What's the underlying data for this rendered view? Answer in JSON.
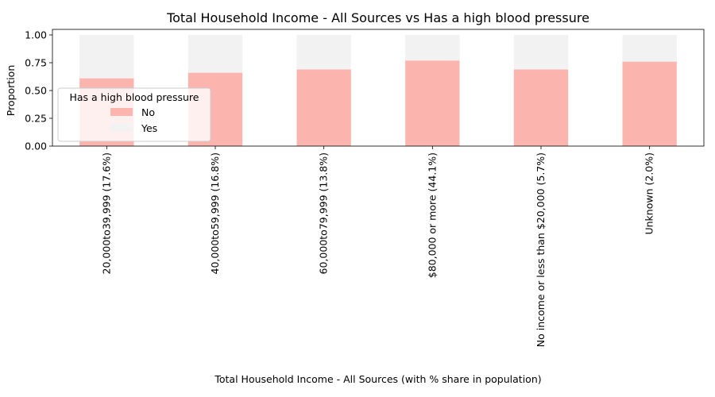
{
  "chart_data": {
    "type": "bar",
    "stacked": true,
    "title": "Total Household Income - All Sources vs Has a high blood pressure",
    "xlabel": "Total Household Income - All Sources (with % share in population)",
    "ylabel": "Proportion",
    "ylim": [
      0,
      1.05
    ],
    "yticks": [
      "0.00",
      "0.25",
      "0.50",
      "0.75",
      "1.00"
    ],
    "categories": [
      "20,000to39,999 (17.6%)",
      "40,000to59,999 (16.8%)",
      "60,000to79,999 (13.8%)",
      "$80,000 or more (44.1%)",
      "No income or less than $20,000 (5.7%)",
      "Unknown (2.0%)"
    ],
    "series": [
      {
        "name": "No",
        "color": "#fbb4ae",
        "values": [
          0.61,
          0.66,
          0.69,
          0.77,
          0.69,
          0.76
        ]
      },
      {
        "name": "Yes",
        "color": "#f2f2f2",
        "values": [
          0.39,
          0.34,
          0.31,
          0.23,
          0.31,
          0.24
        ]
      }
    ],
    "legend": {
      "title": "Has a high blood pressure",
      "placement": "center-left"
    },
    "grid": false
  }
}
